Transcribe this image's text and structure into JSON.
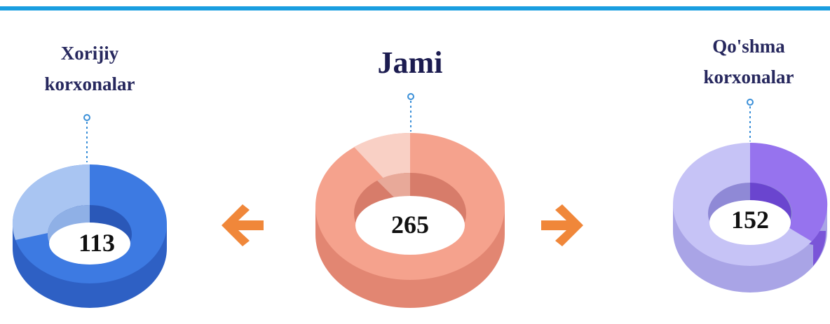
{
  "items": [
    {
      "label": "Xorijiy korxonalar",
      "value": 113
    },
    {
      "label": "Jami",
      "value": 265
    },
    {
      "label": "Qo'shma korxonalar",
      "value": 152
    }
  ]
}
